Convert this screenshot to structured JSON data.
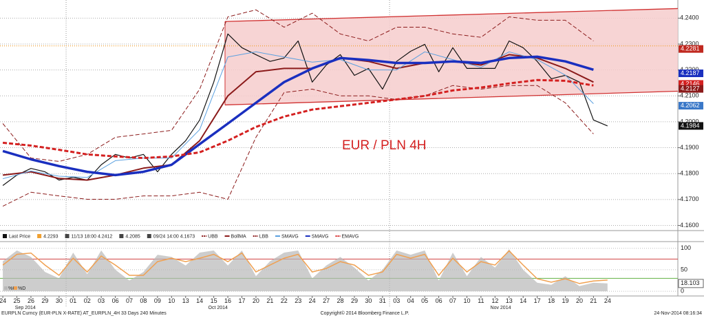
{
  "chart_data": [
    {
      "type": "line",
      "annotation": "EUR / PLN 4H",
      "x": [
        0,
        1,
        2,
        3,
        4,
        5,
        6,
        7,
        8,
        9,
        10,
        11,
        12,
        13,
        14,
        15,
        16,
        17,
        18,
        19,
        20,
        21,
        22,
        23,
        24,
        25,
        26,
        27,
        28,
        29,
        30,
        31,
        32,
        33,
        34,
        35,
        36,
        37,
        38,
        39,
        40,
        41,
        42,
        43
      ],
      "xlim": [
        -0.2,
        48
      ],
      "ylim": [
        4.158,
        4.247
      ],
      "yticks": [
        {
          "value": 4.16,
          "label": "4.1600"
        },
        {
          "value": 4.17,
          "label": "4.1700"
        },
        {
          "value": 4.18,
          "label": "4.1800"
        },
        {
          "value": 4.19,
          "label": "4.1900"
        },
        {
          "value": 4.2,
          "label": "4.2000"
        },
        {
          "value": 4.21,
          "label": "4.2100"
        },
        {
          "value": 4.22,
          "label": "4.2200"
        },
        {
          "value": 4.23,
          "label": "4.2300"
        },
        {
          "value": 4.24,
          "label": "4.2400"
        }
      ],
      "grid": true,
      "channel": {
        "x": [
          15.8,
          48
        ],
        "upper": [
          4.2387,
          4.2437
        ],
        "lower": [
          4.2065,
          4.2118
        ],
        "color": "#d03030",
        "fill": "#f6cccc"
      },
      "hline": {
        "value": 4.2293,
        "color": "#f0a030"
      },
      "series": [
        {
          "name": "Last Price",
          "color": "#111111",
          "width": 1.2,
          "style": "solid",
          "values": [
            4.1754,
            4.1794,
            4.182,
            4.1807,
            4.1775,
            4.1786,
            4.1775,
            4.1834,
            4.1874,
            4.186,
            4.1874,
            4.1807,
            4.1874,
            4.1927,
            4.2007,
            4.2153,
            4.2339,
            4.2286,
            4.2259,
            4.2233,
            4.2246,
            4.2312,
            4.2153,
            4.2219,
            4.2259,
            4.2179,
            4.2206,
            4.2126,
            4.2233,
            4.2272,
            4.2299,
            4.2193,
            4.2286,
            4.2206,
            4.2206,
            4.2206,
            4.2312,
            4.2286,
            4.2233,
            4.2166,
            4.2179,
            4.2153,
            4.2007,
            4.1984
          ]
        },
        {
          "name": "UBB",
          "color": "#8b1a1a",
          "width": 1,
          "style": "dashed",
          "x": [
            0,
            2,
            4,
            6,
            8,
            10,
            12,
            14,
            16,
            18,
            20,
            22,
            24,
            26,
            28,
            30,
            32,
            34,
            36,
            38,
            40,
            42
          ],
          "values": [
            4.1993,
            4.186,
            4.1847,
            4.1874,
            4.194,
            4.1953,
            4.1967,
            4.2126,
            4.2405,
            4.2432,
            4.2365,
            4.2419,
            4.2339,
            4.2312,
            4.2365,
            4.2365,
            4.2339,
            4.2326,
            4.2405,
            4.2392,
            4.2392,
            4.2312
          ]
        },
        {
          "name": "BollMA",
          "color": "#8b1a1a",
          "width": 2,
          "style": "solid",
          "x": [
            0,
            2,
            4,
            6,
            8,
            10,
            12,
            14,
            16,
            18,
            20,
            22,
            24,
            26,
            28,
            30,
            32,
            34,
            36,
            38,
            40,
            42
          ],
          "values": [
            4.1794,
            4.1807,
            4.1781,
            4.1775,
            4.1794,
            4.1821,
            4.1834,
            4.1927,
            4.21,
            4.2193,
            4.2206,
            4.2206,
            4.2246,
            4.2233,
            4.2206,
            4.2227,
            4.2233,
            4.2219,
            4.2259,
            4.2246,
            4.2206,
            4.2153
          ]
        },
        {
          "name": "LBB",
          "color": "#8b1a1a",
          "width": 1,
          "style": "dashed",
          "x": [
            0,
            2,
            4,
            6,
            8,
            10,
            12,
            14,
            16,
            18,
            20,
            22,
            24,
            26,
            28,
            30,
            32,
            34,
            36,
            38,
            40,
            42
          ],
          "values": [
            4.1674,
            4.1728,
            4.1714,
            4.1701,
            4.1701,
            4.1714,
            4.1714,
            4.1728,
            4.1701,
            4.194,
            4.2113,
            4.2126,
            4.21,
            4.21,
            4.2086,
            4.21,
            4.214,
            4.2126,
            4.214,
            4.214,
            4.2073,
            4.1953
          ]
        },
        {
          "name": "SMAVG",
          "color": "#5aa0e0",
          "width": 1,
          "style": "solid",
          "x": [
            0,
            2,
            4,
            6,
            8,
            10,
            12,
            14,
            16,
            18,
            20,
            22,
            24,
            26,
            28,
            30,
            32,
            34,
            36,
            38,
            40,
            42
          ],
          "values": [
            4.178,
            4.181,
            4.179,
            4.1785,
            4.185,
            4.186,
            4.186,
            4.197,
            4.225,
            4.227,
            4.225,
            4.223,
            4.224,
            4.22,
            4.22,
            4.227,
            4.224,
            4.221,
            4.227,
            4.224,
            4.218,
            4.207
          ]
        },
        {
          "name": "SMAVG",
          "color": "#1a2fbf",
          "width": 3.5,
          "style": "solid",
          "x": [
            0,
            2,
            4,
            6,
            8,
            10,
            12,
            14,
            16,
            18,
            20,
            22,
            24,
            26,
            28,
            30,
            32,
            34,
            36,
            38,
            40,
            42
          ],
          "values": [
            4.1887,
            4.1855,
            4.1829,
            4.1807,
            4.1794,
            4.1807,
            4.1834,
            4.1914,
            4.1993,
            4.2073,
            4.2153,
            4.2206,
            4.2246,
            4.2238,
            4.2227,
            4.2227,
            4.2233,
            4.2227,
            4.2246,
            4.2251,
            4.2233,
            4.2201
          ]
        },
        {
          "name": "EMAVG",
          "color": "#d42020",
          "width": 3,
          "style": "dashed",
          "x": [
            0,
            2,
            4,
            6,
            8,
            10,
            12,
            14,
            16,
            18,
            20,
            22,
            24,
            26,
            28,
            30,
            32,
            34,
            36,
            38,
            40,
            42
          ],
          "values": [
            4.1919,
            4.1908,
            4.1892,
            4.1874,
            4.1866,
            4.186,
            4.1866,
            4.1882,
            4.1927,
            4.198,
            4.202,
            4.2047,
            4.206,
            4.2073,
            4.2086,
            4.21,
            4.2121,
            4.2132,
            4.2148,
            4.2161,
            4.2158,
            4.214
          ]
        }
      ],
      "legend_stats": [
        {
          "label": "4.2293",
          "color": "#f0a030"
        },
        {
          "label": "11/13 18:00 4.2412",
          "color": "#444444"
        },
        {
          "label": "4.2085",
          "color": "#444444"
        },
        {
          "label": "09/24 14:00 4.1673",
          "color": "#444444"
        }
      ],
      "price_tags": [
        {
          "value": 4.2281,
          "color": "#c0281f"
        },
        {
          "value": 4.2187,
          "color": "#1a2fbf"
        },
        {
          "value": 4.2146,
          "color": "#d42020"
        },
        {
          "value": 4.2127,
          "color": "#8b1a1a"
        },
        {
          "value": 4.2062,
          "color": "#3a78c8"
        },
        {
          "value": 4.1984,
          "color": "#111111"
        }
      ]
    },
    {
      "type": "stochastic",
      "ylim": [
        -11,
        114
      ],
      "yticks": [
        0,
        50,
        100
      ],
      "reference_lines": [
        {
          "value": 75,
          "color": "#d04040"
        },
        {
          "value": 30,
          "color": "#60b040"
        }
      ],
      "series": [
        {
          "name": "%K",
          "color": "#b8b8b8",
          "style": "area",
          "values": [
            70,
            95,
            80,
            45,
            30,
            90,
            40,
            95,
            50,
            25,
            45,
            85,
            80,
            60,
            90,
            95,
            60,
            95,
            35,
            70,
            90,
            95,
            30,
            60,
            80,
            55,
            25,
            50,
            95,
            85,
            95,
            25,
            90,
            35,
            80,
            55,
            98,
            50,
            20,
            15,
            35,
            12,
            20,
            18.103
          ]
        },
        {
          "name": "%D",
          "color": "#f0a050",
          "style": "line",
          "values": [
            61,
            86,
            89,
            61,
            37,
            77,
            45,
            82,
            61,
            37,
            37,
            69,
            77,
            69,
            77,
            86,
            69,
            89,
            45,
            61,
            77,
            86,
            45,
            53,
            69,
            61,
            37,
            45,
            86,
            77,
            86,
            37,
            77,
            45,
            69,
            61,
            94,
            61,
            29,
            21,
            29,
            18,
            24,
            26
          ]
        }
      ]
    }
  ],
  "x_axis": {
    "ticks": [
      {
        "value": 0,
        "label": "24"
      },
      {
        "value": 1,
        "label": "25"
      },
      {
        "value": 2,
        "label": "26"
      },
      {
        "value": 3,
        "label": "29"
      },
      {
        "value": 4,
        "label": "30"
      },
      {
        "value": 5,
        "label": "01"
      },
      {
        "value": 6,
        "label": "02"
      },
      {
        "value": 7,
        "label": "03"
      },
      {
        "value": 8,
        "label": "06"
      },
      {
        "value": 9,
        "label": "07"
      },
      {
        "value": 10,
        "label": "08"
      },
      {
        "value": 11,
        "label": "09"
      },
      {
        "value": 12,
        "label": "10"
      },
      {
        "value": 13,
        "label": "13"
      },
      {
        "value": 14,
        "label": "14"
      },
      {
        "value": 15,
        "label": "15"
      },
      {
        "value": 16,
        "label": "16"
      },
      {
        "value": 17,
        "label": "17"
      },
      {
        "value": 18,
        "label": "20"
      },
      {
        "value": 19,
        "label": "21"
      },
      {
        "value": 20,
        "label": "22"
      },
      {
        "value": 21,
        "label": "23"
      },
      {
        "value": 22,
        "label": "24"
      },
      {
        "value": 23,
        "label": "27"
      },
      {
        "value": 24,
        "label": "28"
      },
      {
        "value": 25,
        "label": "29"
      },
      {
        "value": 26,
        "label": "30"
      },
      {
        "value": 27,
        "label": "31"
      },
      {
        "value": 28,
        "label": "03"
      },
      {
        "value": 29,
        "label": "04"
      },
      {
        "value": 30,
        "label": "05"
      },
      {
        "value": 31,
        "label": "06"
      },
      {
        "value": 32,
        "label": "07"
      },
      {
        "value": 33,
        "label": "10"
      },
      {
        "value": 34,
        "label": "11"
      },
      {
        "value": 35,
        "label": "12"
      },
      {
        "value": 36,
        "label": "13"
      },
      {
        "value": 37,
        "label": "14"
      },
      {
        "value": 38,
        "label": "17"
      },
      {
        "value": 39,
        "label": "18"
      },
      {
        "value": 40,
        "label": "19"
      },
      {
        "value": 41,
        "label": "20"
      },
      {
        "value": 42,
        "label": "21"
      },
      {
        "value": 43,
        "label": "24"
      }
    ],
    "months": [
      {
        "value": 1.6,
        "label": "Sep 2014"
      },
      {
        "value": 15.3,
        "label": "Oct 2014"
      },
      {
        "value": 35.4,
        "label": "Nov 2014"
      }
    ],
    "boundaries": [
      4.5,
      27.5
    ]
  },
  "footer": {
    "left": "EURPLN Curncy (EUR-PLN X-RATE) AT_EURPLN_4H 33 Days 240 Minutes",
    "center": "Copyright© 2014 Bloomberg Finance L.P.",
    "right": "24-Nov-2014 08:16:34"
  }
}
